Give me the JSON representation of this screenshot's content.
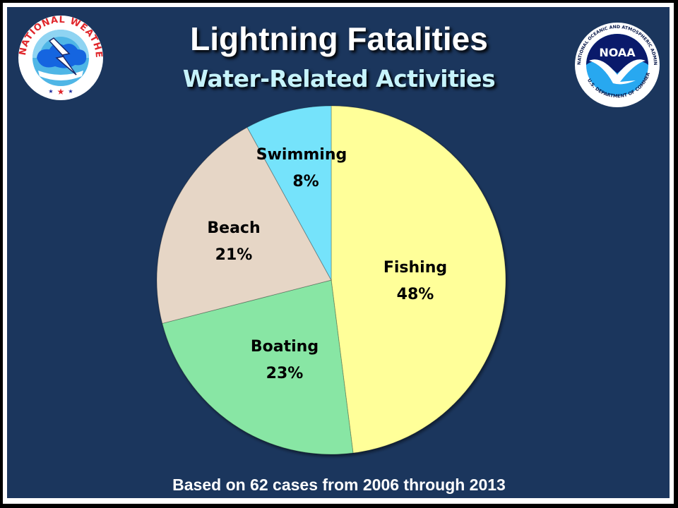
{
  "slide": {
    "title": "Lightning Fatalities",
    "subtitle": "Water-Related Activities",
    "footnote": "Based on 62 cases from 2006 through 2013",
    "colors": {
      "background": "#1b365d",
      "title": "#ffffff",
      "subtitle": "#c6f3fb",
      "border": "#ffffff"
    }
  },
  "logos": {
    "left": {
      "icon": "nws-logo-icon",
      "ring_text": "NATIONAL WEATHER SERVICE"
    },
    "right": {
      "icon": "noaa-logo-icon",
      "center_text": "NOAA",
      "ring_text_top": "NATIONAL OCEANIC AND ATMOSPHERIC ADMINISTRATION",
      "ring_text_bottom": "U.S. DEPARTMENT OF COMMERCE"
    }
  },
  "chart_data": {
    "type": "pie",
    "title": "Lightning Fatalities",
    "subtitle": "Water-Related Activities",
    "categories": [
      "Fishing",
      "Boating",
      "Beach",
      "Swimming"
    ],
    "values": [
      48,
      23,
      21,
      8
    ],
    "value_labels": [
      "48%",
      "23%",
      "21%",
      "8%"
    ],
    "colors": [
      "#ffff99",
      "#88e6a4",
      "#e6d6c6",
      "#74e3fb"
    ],
    "start_angle": "12 o'clock",
    "direction": "clockwise",
    "legend": "none (labels inside slices)",
    "annotation": "Based on 62 cases from 2006 through 2013"
  }
}
